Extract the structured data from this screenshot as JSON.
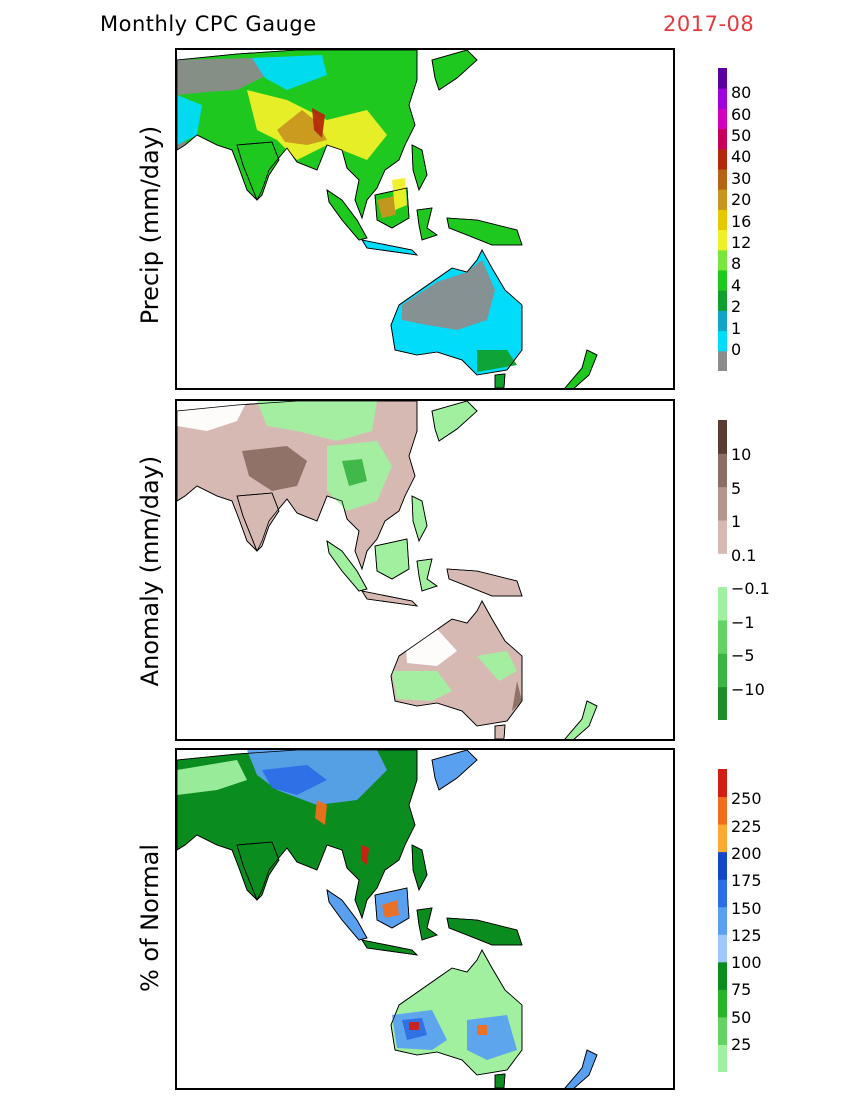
{
  "header": {
    "title": "Monthly CPC Gauge",
    "date": "2017-08"
  },
  "panels": [
    {
      "ylabel": "Precip (mm/day)",
      "colorbar": {
        "ticks": [
          "0",
          "1",
          "2",
          "4",
          "8",
          "12",
          "16",
          "20",
          "30",
          "40",
          "50",
          "60",
          "80"
        ],
        "colors": [
          "#8c8c8c",
          "#00dcfa",
          "#12a5c7",
          "#0fa02d",
          "#1ec81e",
          "#78e63c",
          "#f0f028",
          "#e6c800",
          "#c8961e",
          "#b46414",
          "#b4280a",
          "#c8005a",
          "#d200be",
          "#a000dc",
          "#5a00a0"
        ]
      },
      "map": {
        "land": "#1ec81e",
        "dry": "#8c8c8c",
        "lowrain": "#00dcfa",
        "mid": "#0fa02d",
        "wet": "#f0f028",
        "very_wet": "#c8961e",
        "extreme": "#b4280a"
      }
    },
    {
      "ylabel": "Anomaly (mm/day)",
      "colorbar": {
        "ticks": [
          "10",
          "5",
          "1",
          "0.1",
          "−0.1",
          "−1",
          "−5",
          "−10"
        ],
        "colors": [
          "#1e8c28",
          "#3cb446",
          "#64d264",
          "#a0f0a0",
          "#ffffff",
          "#d7b9b4",
          "#b4968c",
          "#8c6e64",
          "#5a3c32"
        ]
      },
      "map": {
        "land": "#d7b9b4",
        "wet": "#a0f0a0",
        "wetter": "#3cb446",
        "dry": "#b4968c",
        "drier": "#8c6e64",
        "neutral": "#ffffff"
      }
    },
    {
      "ylabel": "% of Normal",
      "colorbar": {
        "ticks": [
          "25",
          "50",
          "75",
          "100",
          "125",
          "150",
          "175",
          "200",
          "225",
          "250"
        ],
        "colors": [
          "#a0f0a0",
          "#64d264",
          "#28b428",
          "#0a8c1e",
          "#a0c8ff",
          "#5aa0f0",
          "#2d6ee6",
          "#1446c8",
          "#ffaa32",
          "#f06e1e",
          "#d21e14"
        ]
      },
      "map": {
        "land": "#a0f0a0",
        "normal": "#0a8c1e",
        "above": "#5aa0f0",
        "wellabove": "#2d6ee6",
        "high": "#f06e1e",
        "veryhigh": "#d21e14"
      }
    }
  ]
}
